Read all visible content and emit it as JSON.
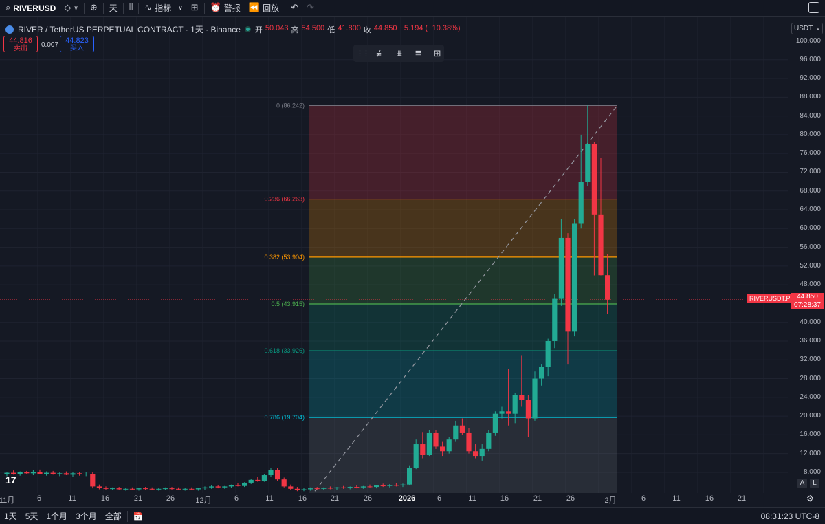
{
  "toolbar": {
    "symbol": "RIVERUSD",
    "interval": "天",
    "indicators_label": "指标",
    "alert_label": "警报",
    "replay_label": "回放"
  },
  "legend": {
    "title": "RIVER / TetherUS PERPETUAL CONTRACT · 1天 · Binance",
    "open_key": "开",
    "open": "50.043",
    "high_key": "高",
    "high": "54.500",
    "low_key": "低",
    "low": "41.800",
    "close_key": "收",
    "close": "44.850",
    "change": "−5.194 (−10.38%)"
  },
  "trade": {
    "sell_price": "44.816",
    "sell_label": "卖出",
    "spread": "0.007",
    "buy_price": "44.823",
    "buy_label": "买入"
  },
  "currency_select": "USDT",
  "price_axis": [
    {
      "v": 100,
      "label": "100.000"
    },
    {
      "v": 96,
      "label": "96.000"
    },
    {
      "v": 92,
      "label": "92.000"
    },
    {
      "v": 88,
      "label": "88.000"
    },
    {
      "v": 84,
      "label": "84.000"
    },
    {
      "v": 80,
      "label": "80.000"
    },
    {
      "v": 76,
      "label": "76.000"
    },
    {
      "v": 72,
      "label": "72.000"
    },
    {
      "v": 68,
      "label": "68.000"
    },
    {
      "v": 64,
      "label": "64.000"
    },
    {
      "v": 60,
      "label": "60.000"
    },
    {
      "v": 56,
      "label": "56.000"
    },
    {
      "v": 52,
      "label": "52.000"
    },
    {
      "v": 48,
      "label": "48.000"
    },
    {
      "v": 40,
      "label": "40.000"
    },
    {
      "v": 36,
      "label": "36.000"
    },
    {
      "v": 32,
      "label": "32.000"
    },
    {
      "v": 28,
      "label": "28.000"
    },
    {
      "v": 24,
      "label": "24.000"
    },
    {
      "v": 20,
      "label": "20.000"
    },
    {
      "v": 16,
      "label": "16.000"
    },
    {
      "v": 12,
      "label": "12.000"
    },
    {
      "v": 8,
      "label": "8.000"
    }
  ],
  "current": {
    "symbol_tag": "RIVERUSDT.P",
    "price": "44.850",
    "countdown": "07:28:37",
    "value": 44.85
  },
  "time_axis": [
    {
      "label": "11月",
      "bold": false
    },
    {
      "label": "6",
      "bold": false
    },
    {
      "label": "11",
      "bold": false
    },
    {
      "label": "16",
      "bold": false
    },
    {
      "label": "21",
      "bold": false
    },
    {
      "label": "26",
      "bold": false
    },
    {
      "label": "12月",
      "bold": false
    },
    {
      "label": "6",
      "bold": false
    },
    {
      "label": "11",
      "bold": false
    },
    {
      "label": "16",
      "bold": false
    },
    {
      "label": "21",
      "bold": false
    },
    {
      "label": "26",
      "bold": false
    },
    {
      "label": "2026",
      "bold": true
    },
    {
      "label": "6",
      "bold": false
    },
    {
      "label": "11",
      "bold": false
    },
    {
      "label": "16",
      "bold": false
    },
    {
      "label": "21",
      "bold": false
    },
    {
      "label": "26",
      "bold": false
    },
    {
      "label": "2月",
      "bold": false
    },
    {
      "label": "6",
      "bold": false
    },
    {
      "label": "11",
      "bold": false
    },
    {
      "label": "16",
      "bold": false
    },
    {
      "label": "21",
      "bold": false
    }
  ],
  "fib_levels": [
    {
      "ratio": 0,
      "label": "0 (86.242)",
      "price": 86.242,
      "color": "#787b86",
      "fill": "rgba(242,54,69,0.22)"
    },
    {
      "ratio": 0.236,
      "label": "0.236 (66.263)",
      "price": 66.263,
      "color": "#f23645",
      "fill": "rgba(255,152,0,0.22)"
    },
    {
      "ratio": 0.382,
      "label": "0.382 (53.904)",
      "price": 53.904,
      "color": "#ff9800",
      "fill": "rgba(76,175,80,0.20)"
    },
    {
      "ratio": 0.5,
      "label": "0.5 (43.915)",
      "price": 43.915,
      "color": "#4caf50",
      "fill": "rgba(8,153,129,0.20)"
    },
    {
      "ratio": 0.618,
      "label": "0.618 (33.926)",
      "price": 33.926,
      "color": "#089981",
      "fill": "rgba(0,188,212,0.20)"
    },
    {
      "ratio": 0.786,
      "label": "0.786 (19.704)",
      "price": 19.704,
      "color": "#00bcd4",
      "fill": "rgba(120,123,134,0.20)"
    }
  ],
  "chart_data": {
    "type": "candlestick",
    "symbol": "RIVERUSDT.P",
    "interval": "1D",
    "ylim": [
      4,
      102
    ],
    "candles_note_index": "day index 0 = Nov 1",
    "candles": [
      {
        "d": 0,
        "o": 7.6,
        "h": 8.1,
        "l": 7.2,
        "c": 7.9
      },
      {
        "d": 1,
        "o": 7.9,
        "h": 8.4,
        "l": 7.5,
        "c": 7.7
      },
      {
        "d": 2,
        "o": 7.7,
        "h": 8.2,
        "l": 7.3,
        "c": 8.0
      },
      {
        "d": 3,
        "o": 8.0,
        "h": 8.3,
        "l": 7.6,
        "c": 7.8
      },
      {
        "d": 4,
        "o": 7.8,
        "h": 8.5,
        "l": 7.4,
        "c": 8.1
      },
      {
        "d": 5,
        "o": 8.1,
        "h": 8.6,
        "l": 7.7,
        "c": 7.7
      },
      {
        "d": 6,
        "o": 7.7,
        "h": 8.2,
        "l": 7.3,
        "c": 7.9
      },
      {
        "d": 7,
        "o": 7.9,
        "h": 8.3,
        "l": 7.5,
        "c": 7.6
      },
      {
        "d": 8,
        "o": 7.6,
        "h": 8.1,
        "l": 7.2,
        "c": 7.8
      },
      {
        "d": 9,
        "o": 7.8,
        "h": 8.2,
        "l": 7.4,
        "c": 7.5
      },
      {
        "d": 10,
        "o": 7.5,
        "h": 8.0,
        "l": 7.1,
        "c": 7.8
      },
      {
        "d": 11,
        "o": 7.8,
        "h": 8.1,
        "l": 7.3,
        "c": 7.6
      },
      {
        "d": 12,
        "o": 7.6,
        "h": 8.0,
        "l": 7.2,
        "c": 7.7
      },
      {
        "d": 13,
        "o": 7.7,
        "h": 8.0,
        "l": 4.6,
        "c": 5.0
      },
      {
        "d": 14,
        "o": 5.0,
        "h": 5.4,
        "l": 4.4,
        "c": 4.7
      },
      {
        "d": 15,
        "o": 4.7,
        "h": 5.0,
        "l": 4.2,
        "c": 4.5
      },
      {
        "d": 16,
        "o": 4.5,
        "h": 4.8,
        "l": 4.2,
        "c": 4.6
      },
      {
        "d": 17,
        "o": 4.6,
        "h": 4.9,
        "l": 4.3,
        "c": 4.4
      },
      {
        "d": 18,
        "o": 4.4,
        "h": 4.7,
        "l": 4.1,
        "c": 4.5
      },
      {
        "d": 19,
        "o": 4.5,
        "h": 4.8,
        "l": 4.2,
        "c": 4.4
      },
      {
        "d": 20,
        "o": 4.4,
        "h": 4.7,
        "l": 4.1,
        "c": 4.6
      },
      {
        "d": 21,
        "o": 4.6,
        "h": 4.9,
        "l": 4.3,
        "c": 4.5
      },
      {
        "d": 22,
        "o": 4.5,
        "h": 4.8,
        "l": 4.2,
        "c": 4.4
      },
      {
        "d": 23,
        "o": 4.4,
        "h": 4.7,
        "l": 4.1,
        "c": 4.5
      },
      {
        "d": 24,
        "o": 4.5,
        "h": 4.8,
        "l": 4.2,
        "c": 4.6
      },
      {
        "d": 25,
        "o": 4.6,
        "h": 4.9,
        "l": 4.3,
        "c": 4.5
      },
      {
        "d": 26,
        "o": 4.5,
        "h": 4.8,
        "l": 4.2,
        "c": 4.4
      },
      {
        "d": 27,
        "o": 4.4,
        "h": 4.7,
        "l": 4.1,
        "c": 4.5
      },
      {
        "d": 28,
        "o": 4.5,
        "h": 4.8,
        "l": 4.2,
        "c": 4.4
      },
      {
        "d": 29,
        "o": 4.4,
        "h": 4.7,
        "l": 4.1,
        "c": 4.6
      },
      {
        "d": 30,
        "o": 4.6,
        "h": 5.0,
        "l": 4.3,
        "c": 4.8
      },
      {
        "d": 31,
        "o": 4.8,
        "h": 5.2,
        "l": 4.5,
        "c": 5.0
      },
      {
        "d": 32,
        "o": 5.0,
        "h": 5.3,
        "l": 4.6,
        "c": 4.8
      },
      {
        "d": 33,
        "o": 4.8,
        "h": 5.1,
        "l": 4.5,
        "c": 5.0
      },
      {
        "d": 34,
        "o": 5.0,
        "h": 5.4,
        "l": 4.7,
        "c": 5.3
      },
      {
        "d": 35,
        "o": 5.3,
        "h": 5.7,
        "l": 5.0,
        "c": 5.1
      },
      {
        "d": 36,
        "o": 5.1,
        "h": 5.9,
        "l": 4.9,
        "c": 5.8
      },
      {
        "d": 37,
        "o": 5.8,
        "h": 6.6,
        "l": 5.5,
        "c": 6.4
      },
      {
        "d": 38,
        "o": 6.4,
        "h": 7.0,
        "l": 6.0,
        "c": 6.2
      },
      {
        "d": 39,
        "o": 6.2,
        "h": 7.6,
        "l": 6.0,
        "c": 7.4
      },
      {
        "d": 40,
        "o": 7.4,
        "h": 8.9,
        "l": 7.0,
        "c": 8.5
      },
      {
        "d": 41,
        "o": 8.5,
        "h": 9.0,
        "l": 6.2,
        "c": 6.5
      },
      {
        "d": 42,
        "o": 6.5,
        "h": 6.9,
        "l": 4.8,
        "c": 5.0
      },
      {
        "d": 43,
        "o": 5.0,
        "h": 5.4,
        "l": 4.3,
        "c": 4.5
      },
      {
        "d": 44,
        "o": 4.5,
        "h": 4.9,
        "l": 4.0,
        "c": 4.3
      },
      {
        "d": 45,
        "o": 4.3,
        "h": 4.7,
        "l": 4.0,
        "c": 4.4
      },
      {
        "d": 46,
        "o": 4.4,
        "h": 4.8,
        "l": 4.1,
        "c": 4.6
      },
      {
        "d": 47,
        "o": 4.6,
        "h": 4.9,
        "l": 4.3,
        "c": 4.5
      },
      {
        "d": 48,
        "o": 4.5,
        "h": 4.8,
        "l": 4.2,
        "c": 4.7
      },
      {
        "d": 49,
        "o": 4.7,
        "h": 5.0,
        "l": 4.4,
        "c": 4.6
      },
      {
        "d": 50,
        "o": 4.6,
        "h": 4.9,
        "l": 4.3,
        "c": 4.8
      },
      {
        "d": 51,
        "o": 4.8,
        "h": 5.1,
        "l": 4.5,
        "c": 4.7
      },
      {
        "d": 52,
        "o": 4.7,
        "h": 5.0,
        "l": 4.4,
        "c": 4.9
      },
      {
        "d": 53,
        "o": 4.9,
        "h": 5.2,
        "l": 4.6,
        "c": 4.8
      },
      {
        "d": 54,
        "o": 4.8,
        "h": 5.1,
        "l": 4.5,
        "c": 5.0
      },
      {
        "d": 55,
        "o": 5.0,
        "h": 5.4,
        "l": 4.7,
        "c": 4.9
      },
      {
        "d": 56,
        "o": 4.9,
        "h": 5.3,
        "l": 4.6,
        "c": 5.2
      },
      {
        "d": 57,
        "o": 5.2,
        "h": 5.6,
        "l": 4.9,
        "c": 5.1
      },
      {
        "d": 58,
        "o": 5.1,
        "h": 5.5,
        "l": 4.8,
        "c": 5.3
      },
      {
        "d": 59,
        "o": 5.3,
        "h": 5.7,
        "l": 5.0,
        "c": 5.2
      },
      {
        "d": 60,
        "o": 5.2,
        "h": 5.6,
        "l": 4.9,
        "c": 5.4
      },
      {
        "d": 61,
        "o": 5.4,
        "h": 9.5,
        "l": 5.2,
        "c": 9.0
      },
      {
        "d": 62,
        "o": 9.0,
        "h": 15.0,
        "l": 8.7,
        "c": 14.0
      },
      {
        "d": 63,
        "o": 14.0,
        "h": 16.6,
        "l": 11.0,
        "c": 11.8
      },
      {
        "d": 64,
        "o": 11.8,
        "h": 17.0,
        "l": 11.5,
        "c": 16.5
      },
      {
        "d": 65,
        "o": 16.5,
        "h": 17.0,
        "l": 13.0,
        "c": 13.5
      },
      {
        "d": 66,
        "o": 13.5,
        "h": 14.5,
        "l": 11.5,
        "c": 12.5
      },
      {
        "d": 67,
        "o": 12.5,
        "h": 15.5,
        "l": 12.0,
        "c": 15.0
      },
      {
        "d": 68,
        "o": 15.0,
        "h": 19.0,
        "l": 14.5,
        "c": 18.0
      },
      {
        "d": 69,
        "o": 18.0,
        "h": 19.5,
        "l": 16.0,
        "c": 16.5
      },
      {
        "d": 70,
        "o": 16.5,
        "h": 17.5,
        "l": 12.0,
        "c": 12.5
      },
      {
        "d": 71,
        "o": 12.5,
        "h": 14.0,
        "l": 11.0,
        "c": 11.5
      },
      {
        "d": 72,
        "o": 11.5,
        "h": 14.0,
        "l": 10.5,
        "c": 13.0
      },
      {
        "d": 73,
        "o": 13.0,
        "h": 17.0,
        "l": 12.5,
        "c": 16.5
      },
      {
        "d": 74,
        "o": 16.5,
        "h": 21.0,
        "l": 15.8,
        "c": 20.5
      },
      {
        "d": 75,
        "o": 20.5,
        "h": 22.0,
        "l": 19.5,
        "c": 21.0
      },
      {
        "d": 76,
        "o": 21.0,
        "h": 30.0,
        "l": 18.0,
        "c": 20.5
      },
      {
        "d": 77,
        "o": 20.5,
        "h": 25.0,
        "l": 18.5,
        "c": 24.5
      },
      {
        "d": 78,
        "o": 24.5,
        "h": 33.0,
        "l": 22.0,
        "c": 23.5
      },
      {
        "d": 79,
        "o": 23.5,
        "h": 24.5,
        "l": 15.5,
        "c": 19.5
      },
      {
        "d": 80,
        "o": 19.5,
        "h": 29.5,
        "l": 19.0,
        "c": 28.0
      },
      {
        "d": 81,
        "o": 28.0,
        "h": 31.0,
        "l": 26.5,
        "c": 30.5
      },
      {
        "d": 82,
        "o": 30.5,
        "h": 36.5,
        "l": 28.5,
        "c": 36.0
      },
      {
        "d": 83,
        "o": 36.0,
        "h": 46.0,
        "l": 34.5,
        "c": 45.0
      },
      {
        "d": 84,
        "o": 45.0,
        "h": 62.0,
        "l": 43.5,
        "c": 58.0
      },
      {
        "d": 85,
        "o": 58.0,
        "h": 59.0,
        "l": 31.0,
        "c": 38.0
      },
      {
        "d": 86,
        "o": 38.0,
        "h": 62.0,
        "l": 37.0,
        "c": 61.0
      },
      {
        "d": 87,
        "o": 61.0,
        "h": 80.0,
        "l": 60.0,
        "c": 70.0
      },
      {
        "d": 88,
        "o": 70.0,
        "h": 86.242,
        "l": 69.0,
        "c": 78.0
      },
      {
        "d": 89,
        "o": 78.0,
        "h": 78.5,
        "l": 50.0,
        "c": 63.0
      },
      {
        "d": 90,
        "o": 63.0,
        "h": 75.0,
        "l": 50.0,
        "c": 50.043
      },
      {
        "d": 91,
        "o": 50.043,
        "h": 54.5,
        "l": 41.8,
        "c": 44.85
      }
    ]
  },
  "bottombar": {
    "ranges": [
      "1天",
      "5天",
      "1个月",
      "3个月",
      "全部"
    ],
    "clock": "08:31:23 UTC-8"
  },
  "scale_buttons": {
    "auto": "A",
    "log": "L"
  },
  "tv_logo": "17"
}
